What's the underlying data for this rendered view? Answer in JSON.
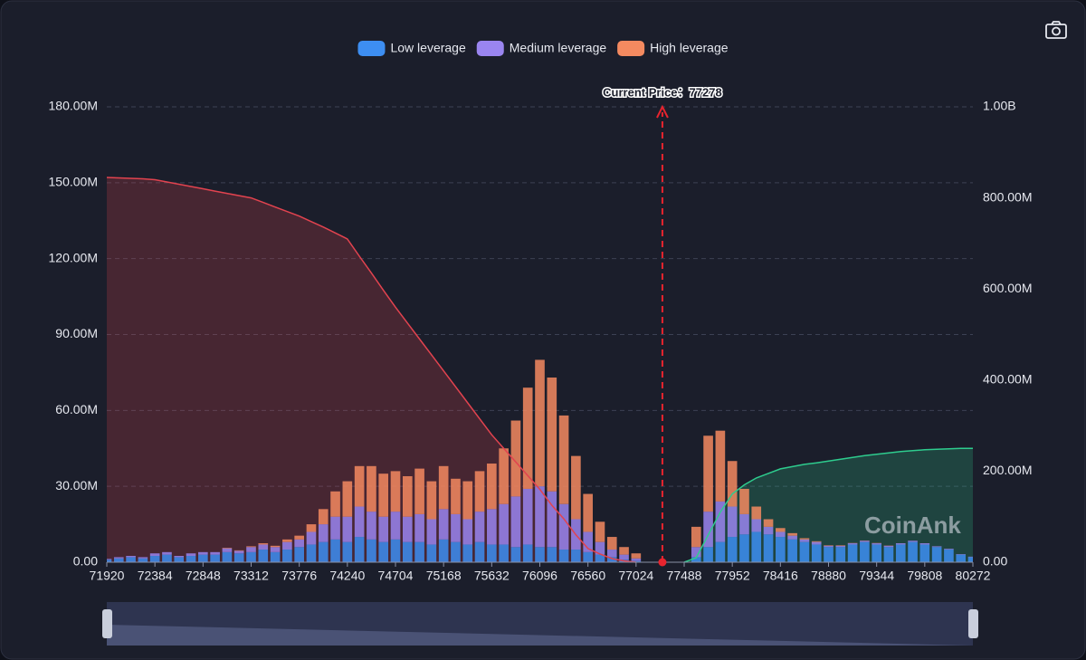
{
  "chart_data": {
    "type": "stacked-bar-line",
    "legend": {
      "position": "top"
    },
    "grid": true,
    "watermark": "CoinAnk",
    "current_price": {
      "value": 77278,
      "label": "Current Price：77278"
    },
    "x": [
      71920,
      72036,
      72152,
      72268,
      72384,
      72500,
      72616,
      72732,
      72848,
      72964,
      73080,
      73196,
      73312,
      73428,
      73544,
      73660,
      73776,
      73892,
      74008,
      74124,
      74240,
      74356,
      74472,
      74588,
      74704,
      74820,
      74936,
      75052,
      75168,
      75284,
      75400,
      75516,
      75632,
      75748,
      75864,
      75980,
      76096,
      76212,
      76328,
      76444,
      76560,
      76676,
      76792,
      76908,
      77024,
      77140,
      77256,
      77372,
      77488,
      77604,
      77720,
      77836,
      77952,
      78068,
      78184,
      78300,
      78416,
      78532,
      78648,
      78764,
      78880,
      78996,
      79112,
      79228,
      79344,
      79460,
      79576,
      79692,
      79808,
      79924,
      80040,
      80156,
      80272
    ],
    "xlim": [
      71920,
      80272
    ],
    "xticks": [
      71920,
      72384,
      72848,
      73312,
      73776,
      74240,
      74704,
      75168,
      75632,
      76096,
      76560,
      77024,
      77488,
      77952,
      78416,
      78880,
      79344,
      79808,
      80272
    ],
    "ylim": [
      0,
      180
    ],
    "yticks": [
      {
        "value": 0,
        "label": "0.00"
      },
      {
        "value": 30,
        "label": "30.00M"
      },
      {
        "value": 60,
        "label": "60.00M"
      },
      {
        "value": 90,
        "label": "90.00M"
      },
      {
        "value": 120,
        "label": "120.00M"
      },
      {
        "value": 150,
        "label": "150.00M"
      },
      {
        "value": 180,
        "label": "180.00M"
      }
    ],
    "y2lim": [
      0,
      1000
    ],
    "y2ticks": [
      {
        "value": 0,
        "label": "0.00"
      },
      {
        "value": 200,
        "label": "200.00M"
      },
      {
        "value": 400,
        "label": "400.00M"
      },
      {
        "value": 600,
        "label": "600.00M"
      },
      {
        "value": 800,
        "label": "800.00M"
      },
      {
        "value": 1000,
        "label": "1.00B"
      }
    ],
    "series": [
      {
        "name": "Low leverage",
        "color": "#3d8ef2",
        "values": [
          1,
          1.5,
          2,
          1.5,
          2.5,
          3,
          2,
          2.5,
          3,
          3,
          4,
          3.5,
          4,
          5,
          4,
          5,
          6,
          7,
          8,
          9,
          8,
          10,
          9,
          8,
          9,
          8,
          8,
          7,
          9,
          8,
          7,
          8,
          7,
          7,
          6,
          7,
          6,
          6,
          5,
          5,
          4,
          3,
          2,
          1,
          0.5,
          0,
          0,
          0,
          0,
          2,
          6,
          8,
          10,
          11,
          12,
          11,
          10,
          9,
          8,
          7,
          6,
          6,
          7,
          8,
          7,
          6,
          7,
          8,
          7,
          6,
          5,
          3,
          2
        ]
      },
      {
        "name": "Medium leverage",
        "color": "#9a85f0",
        "values": [
          0.3,
          0.5,
          0.5,
          0.5,
          1,
          1,
          0.5,
          1,
          1,
          1,
          1.5,
          1,
          2,
          2,
          2,
          3,
          3,
          5,
          7,
          9,
          10,
          12,
          11,
          10,
          11,
          10,
          11,
          10,
          12,
          11,
          10,
          12,
          14,
          16,
          20,
          22,
          24,
          22,
          18,
          12,
          8,
          5,
          3,
          2,
          1,
          0,
          0,
          0,
          0,
          4,
          14,
          16,
          12,
          8,
          5,
          3,
          2,
          1.5,
          1,
          1,
          0.5,
          0.5,
          0.5,
          0.5,
          0.5,
          0.5,
          0.5,
          0.5,
          0.5,
          0.3,
          0.3,
          0.2,
          0.2
        ]
      },
      {
        "name": "High leverage",
        "color": "#f48a60",
        "values": [
          0,
          0,
          0,
          0,
          0,
          0,
          0,
          0,
          0,
          0,
          0.2,
          0.2,
          0.3,
          0.5,
          0.5,
          1,
          1.5,
          3,
          6,
          10,
          14,
          16,
          18,
          17,
          16,
          16,
          18,
          15,
          17,
          14,
          15,
          16,
          18,
          22,
          30,
          40,
          50,
          45,
          35,
          25,
          15,
          8,
          5,
          3,
          2,
          0,
          0,
          0,
          0,
          8,
          30,
          28,
          18,
          10,
          5,
          3,
          1.5,
          1,
          0.5,
          0.3,
          0.2,
          0.2,
          0.1,
          0.1,
          0.1,
          0.1,
          0,
          0,
          0,
          0,
          0,
          0,
          0
        ]
      }
    ],
    "lines": [
      {
        "axis": "y2",
        "color": "#e2434f",
        "values": [
          845,
          844,
          843,
          842,
          840,
          835,
          830,
          825,
          820,
          815,
          810,
          805,
          800,
          790,
          780,
          770,
          760,
          748,
          736,
          723,
          710,
          672,
          635,
          597,
          560,
          525,
          490,
          455,
          420,
          385,
          350,
          315,
          280,
          250,
          220,
          190,
          160,
          125,
          95,
          60,
          30,
          18,
          8,
          3,
          0,
          null,
          null,
          null,
          null,
          null,
          null,
          null,
          null,
          null,
          null,
          null,
          null,
          null,
          null,
          null,
          null,
          null,
          null,
          null,
          null,
          null,
          null,
          null,
          null,
          null,
          null,
          null,
          null
        ]
      },
      {
        "axis": "y2",
        "color": "#2ecc8e",
        "values": [
          null,
          null,
          null,
          null,
          null,
          null,
          null,
          null,
          null,
          null,
          null,
          null,
          null,
          null,
          null,
          null,
          null,
          null,
          null,
          null,
          null,
          null,
          null,
          null,
          null,
          null,
          null,
          null,
          null,
          null,
          null,
          null,
          null,
          null,
          null,
          null,
          null,
          null,
          null,
          null,
          null,
          null,
          null,
          null,
          null,
          null,
          null,
          null,
          0,
          10,
          60,
          110,
          150,
          170,
          185,
          195,
          205,
          210,
          215,
          218,
          222,
          226,
          230,
          234,
          237,
          240,
          243,
          245,
          247,
          248,
          249,
          250,
          250
        ]
      }
    ]
  }
}
